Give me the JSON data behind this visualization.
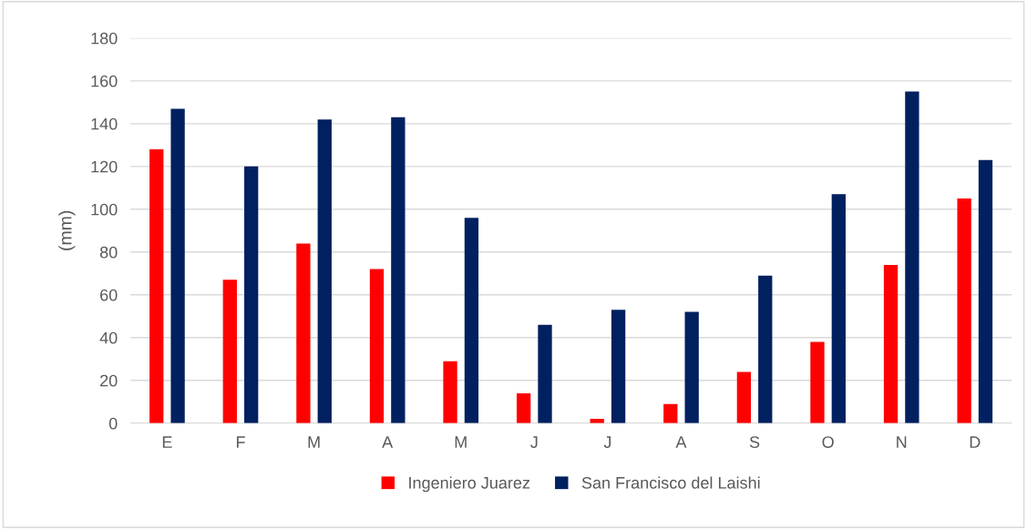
{
  "chart_data": {
    "type": "bar",
    "ylabel": "(mm)",
    "categories": [
      "E",
      "F",
      "M",
      "A",
      "M",
      "J",
      "J",
      "A",
      "S",
      "O",
      "N",
      "D"
    ],
    "series": [
      {
        "name": "Ingeniero Juarez",
        "color": "#ff0000",
        "values": [
          128,
          67,
          84,
          72,
          29,
          14,
          2,
          9,
          24,
          38,
          74,
          105
        ]
      },
      {
        "name": "San Francisco del Laishi",
        "color": "#002060",
        "values": [
          147,
          120,
          142,
          143,
          96,
          46,
          53,
          52,
          69,
          107,
          155,
          123
        ]
      }
    ],
    "ylim": [
      0,
      180
    ],
    "yticks": [
      0,
      20,
      40,
      60,
      80,
      100,
      120,
      140,
      160,
      180
    ],
    "grid": "y",
    "legend": "bottom"
  }
}
